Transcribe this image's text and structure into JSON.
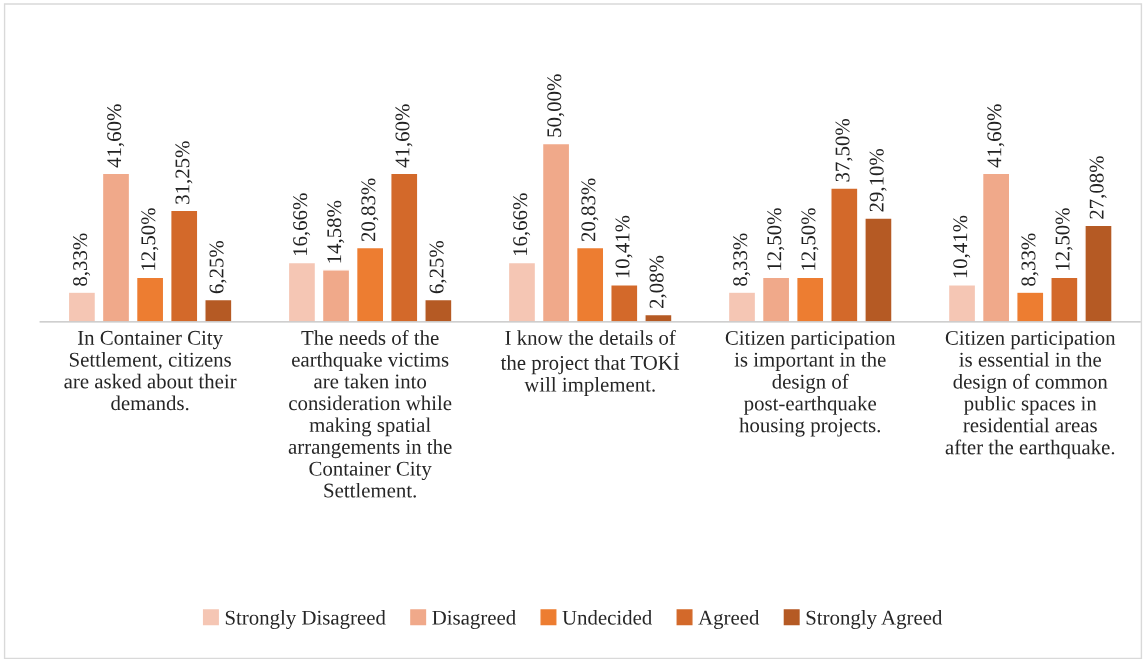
{
  "chart_data": {
    "type": "bar",
    "legend": "bottom",
    "categories": [
      "In Container City Settlement, citizens are asked about their demands.",
      "The needs of the earthquake victims are taken into consideration while making spatial arrangements in the Container City Settlement.",
      "I know the details of the project that TOKİ will implement.",
      "Citizen participation is important in the design of post-earthquake housing projects.",
      "Citizen participation is essential in the design of common public spaces in residential areas after the earthquake."
    ],
    "series": [
      {
        "name": "Strongly Disagreed",
        "color": "#f5c6b4",
        "values": [
          8.33,
          16.66,
          16.66,
          8.33,
          10.41
        ],
        "value_labels": [
          "8,33%",
          "16,66%",
          "16,66%",
          "8,33%",
          "10,41%"
        ]
      },
      {
        "name": "Disagreed",
        "color": "#f0a98a",
        "values": [
          41.6,
          14.58,
          50.0,
          12.5,
          41.6
        ],
        "value_labels": [
          "41,60%",
          "14,58%",
          "50,00%",
          "12,50%",
          "41,60%"
        ]
      },
      {
        "name": "Undecided",
        "color": "#ed7d31",
        "values": [
          12.5,
          20.83,
          20.83,
          12.5,
          8.33
        ],
        "value_labels": [
          "12,50%",
          "20,83%",
          "20,83%",
          "12,50%",
          "8,33%"
        ]
      },
      {
        "name": "Agreed",
        "color": "#d3692a",
        "values": [
          31.25,
          41.6,
          10.41,
          37.5,
          12.5
        ],
        "value_labels": [
          "31,25%",
          "41,60%",
          "10,41%",
          "37,50%",
          "12,50%"
        ]
      },
      {
        "name": "Strongly Agreed",
        "color": "#b55a24",
        "values": [
          6.25,
          6.25,
          2.08,
          29.1,
          27.08
        ],
        "value_labels": [
          "6,25%",
          "6,25%",
          "2,08%",
          "29,10%",
          "27,08%"
        ]
      }
    ]
  }
}
